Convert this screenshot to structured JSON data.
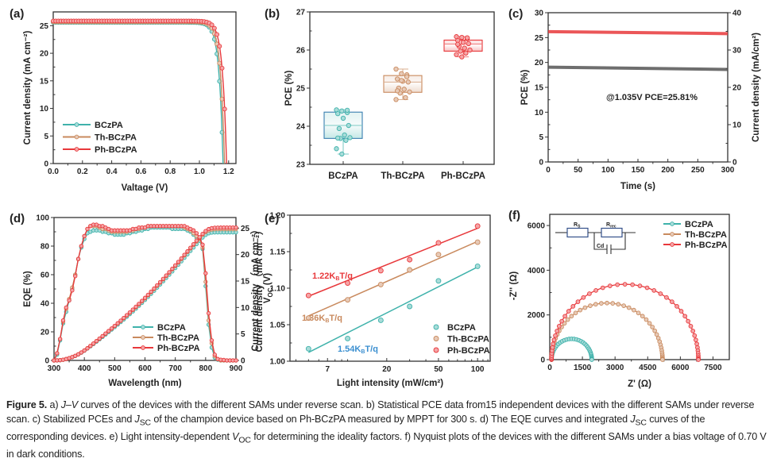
{
  "colors": {
    "BCzPA": "#3fb2ab",
    "Th-BCzPA": "#c98a5e",
    "Ph-BCzPA": "#e8383b",
    "fit_label_BCzPA": "#3b8fd0",
    "black_line": "#555555"
  },
  "chart_data": [
    {
      "id": "a",
      "panel_label": "(a)",
      "type": "line",
      "xlabel": "Valtage (V)",
      "ylabel": "Current density (mA cm⁻²)",
      "xlim": [
        0,
        1.25
      ],
      "ylim": [
        0,
        27.5
      ],
      "xticks": [
        "0.0",
        "0.2",
        "0.4",
        "0.6",
        "0.8",
        "1.0",
        "1.2"
      ],
      "xtick_values": [
        0,
        0.2,
        0.4,
        0.6,
        0.8,
        1.0,
        1.2
      ],
      "yticks": [
        "0",
        "5",
        "10",
        "15",
        "20",
        "25"
      ],
      "ytick_values": [
        0,
        5,
        10,
        15,
        20,
        25
      ],
      "legend": {
        "placement": "bottom-left",
        "entries": [
          "BCzPA",
          "Th-BCzPA",
          "Ph-BCzPA"
        ]
      },
      "series": [
        {
          "name": "BCzPA",
          "jsc": 25.6,
          "voc": 1.162,
          "knee": 0.93
        },
        {
          "name": "Th-BCzPA",
          "jsc": 25.7,
          "voc": 1.172,
          "knee": 0.97
        },
        {
          "name": "Ph-BCzPA",
          "jsc": 25.85,
          "voc": 1.186,
          "knee": 1.0
        }
      ]
    },
    {
      "id": "b",
      "panel_label": "(b)",
      "type": "box",
      "ylabel": "PCE (%)",
      "ylim": [
        23,
        27
      ],
      "yticks": [
        "23",
        "24",
        "25",
        "26",
        "27"
      ],
      "ytick_values": [
        23,
        24,
        25,
        26,
        27
      ],
      "categories": [
        "BCzPA",
        "Th-BCzPA",
        "Ph-BCzPA"
      ],
      "boxes": [
        {
          "name": "BCzPA",
          "q1": 23.68,
          "median": 24.02,
          "q3": 24.37,
          "min": 23.27,
          "max": 24.43,
          "points": [
            24.43,
            24.4,
            24.36,
            24.33,
            24.21,
            24.02,
            23.94,
            23.77,
            23.7,
            23.68,
            23.63,
            23.41,
            23.27,
            24.42,
            23.69
          ]
        },
        {
          "name": "Th-BCzPA",
          "q1": 24.89,
          "median": 25.16,
          "q3": 25.33,
          "min": 24.7,
          "max": 25.5,
          "points": [
            25.5,
            25.38,
            25.35,
            25.24,
            25.18,
            25.16,
            25.0,
            24.97,
            24.9,
            24.87,
            24.75,
            24.7,
            25.2,
            25.3,
            24.93
          ]
        },
        {
          "name": "Ph-BCzPA",
          "q1": 25.97,
          "median": 26.16,
          "q3": 26.26,
          "min": 25.82,
          "max": 26.35,
          "points": [
            26.35,
            26.33,
            26.3,
            26.25,
            26.2,
            26.17,
            26.1,
            26.05,
            26.0,
            25.97,
            25.92,
            25.88,
            25.82,
            26.32,
            26.15
          ]
        }
      ]
    },
    {
      "id": "c",
      "panel_label": "(c)",
      "type": "line",
      "xlabel": "Time (s)",
      "ylabel": "PCE (%)",
      "ylabel_right": "Current density (mA/cm²)",
      "xlim": [
        0,
        300
      ],
      "ylim": [
        0,
        30
      ],
      "ylim_right": [
        0,
        40
      ],
      "xticks": [
        "0",
        "50",
        "100",
        "150",
        "200",
        "250",
        "300"
      ],
      "xtick_values": [
        0,
        50,
        100,
        150,
        200,
        250,
        300
      ],
      "yticks": [
        "0",
        "5",
        "10",
        "15",
        "20",
        "25",
        "30"
      ],
      "ytick_values": [
        0,
        5,
        10,
        15,
        20,
        25,
        30
      ],
      "yticks_right": [
        "0",
        "10",
        "20",
        "30",
        "40"
      ],
      "ytick_values_right": [
        0,
        10,
        20,
        30,
        40
      ],
      "annotation": "@1.035V   PCE=25.81%",
      "series": [
        {
          "name": "PCE",
          "axis": "left",
          "color": "#e8383b",
          "x": [
            0,
            300
          ],
          "y": [
            26.2,
            25.8
          ]
        },
        {
          "name": "Current density",
          "axis": "right",
          "color": "#555555",
          "x": [
            0,
            300
          ],
          "y": [
            25.4,
            24.8
          ]
        }
      ]
    },
    {
      "id": "d",
      "panel_label": "(d)",
      "type": "line",
      "xlabel": "Wavelength (nm)",
      "ylabel": "EQE (%)",
      "ylabel_right": "Current density （mA cm⁻²）",
      "xlim": [
        300,
        900
      ],
      "ylim": [
        0,
        100
      ],
      "ylim_right": [
        0,
        27
      ],
      "xticks": [
        "300",
        "400",
        "500",
        "600",
        "700",
        "800",
        "900"
      ],
      "xtick_values": [
        300,
        400,
        500,
        600,
        700,
        800,
        900
      ],
      "yticks": [
        "0",
        "20",
        "40",
        "60",
        "80",
        "100"
      ],
      "ytick_values": [
        0,
        20,
        40,
        60,
        80,
        100
      ],
      "yticks_right": [
        "0",
        "5",
        "10",
        "15",
        "20",
        "25"
      ],
      "ytick_values_right": [
        0,
        5,
        10,
        15,
        20,
        25
      ],
      "legend": {
        "placement": "bottom-center",
        "entries": [
          "BCzPA",
          "Th-BCzPA",
          "Ph-BCzPA"
        ]
      },
      "eqe_wavelength": [
        300,
        310,
        320,
        330,
        340,
        350,
        360,
        370,
        380,
        390,
        400,
        410,
        420,
        430,
        440,
        450,
        460,
        470,
        480,
        490,
        500,
        510,
        520,
        530,
        540,
        550,
        560,
        570,
        580,
        590,
        600,
        610,
        620,
        630,
        640,
        650,
        660,
        670,
        680,
        690,
        700,
        710,
        720,
        730,
        740,
        750,
        760,
        770,
        780,
        790,
        800,
        810,
        820,
        830,
        840,
        850,
        860,
        870,
        880,
        890,
        900
      ],
      "series": [
        {
          "name": "BCzPA",
          "eqe": [
            0,
            4,
            14,
            26,
            34,
            42,
            50,
            60,
            71,
            79,
            85,
            89,
            90,
            91,
            91,
            91,
            90,
            90,
            89,
            89,
            88,
            88,
            88,
            88,
            89,
            89,
            90,
            90,
            91,
            91,
            92,
            92,
            93,
            93,
            93,
            93,
            93,
            93,
            93,
            92,
            92,
            92,
            92,
            92,
            91,
            90,
            88,
            86,
            84,
            78,
            52,
            25,
            9,
            2,
            0.5,
            0,
            0,
            0,
            0,
            0,
            0
          ],
          "jsc_final": 24.2
        },
        {
          "name": "Th-BCzPA",
          "eqe": [
            0,
            5,
            15,
            27,
            36,
            43,
            51,
            60,
            71,
            80,
            87,
            92,
            94,
            94,
            94,
            93,
            92,
            92,
            91,
            90,
            90,
            90,
            90,
            90,
            90,
            91,
            91,
            92,
            92,
            93,
            93,
            94,
            94,
            94,
            94,
            94,
            94,
            94,
            94,
            94,
            94,
            94,
            94,
            93,
            92,
            91,
            89,
            87,
            85,
            79,
            55,
            28,
            12,
            3,
            0.8,
            0,
            0,
            0,
            0,
            0,
            0
          ],
          "jsc_final": 24.8
        },
        {
          "name": "Ph-BCzPA",
          "eqe": [
            0,
            5,
            15,
            28,
            37,
            42,
            49,
            59,
            71,
            80,
            87,
            92,
            94,
            95,
            95,
            94,
            94,
            93,
            92,
            91,
            91,
            91,
            91,
            91,
            91,
            91,
            92,
            92,
            93,
            93,
            93,
            94,
            94,
            94,
            94,
            94,
            94,
            94,
            94,
            94,
            94,
            94,
            94,
            94,
            93,
            92,
            91,
            89,
            86,
            81,
            61,
            33,
            14,
            4,
            1,
            0.5,
            0.3,
            0,
            0,
            0,
            0
          ],
          "jsc_final": 25.1
        }
      ]
    },
    {
      "id": "e",
      "panel_label": "(e)",
      "type": "scatter",
      "xlabel": "Light intensity (mW/cm²)",
      "ylabel": "V_OC (V)",
      "ylabel_behind": "Current density （mA cm⁻²）",
      "xscale": "log",
      "xlim": [
        3.6,
        125
      ],
      "ylim": [
        1.0,
        1.2
      ],
      "xticks": [
        "7",
        "20",
        "50",
        "100"
      ],
      "xtick_values": [
        7,
        20,
        50,
        100
      ],
      "yticks": [
        "1.00",
        "1.05",
        "1.10",
        "1.15",
        "1.20"
      ],
      "ytick_values": [
        1.0,
        1.05,
        1.1,
        1.15,
        1.2
      ],
      "legend": {
        "placement": "bottom-right",
        "entries": [
          "BCzPA",
          "Th-BCzPA",
          "Ph-BCzPA"
        ]
      },
      "x": [
        5,
        10,
        18,
        30,
        50,
        100
      ],
      "series": [
        {
          "name": "BCzPA",
          "y": [
            1.017,
            1.031,
            1.056,
            1.075,
            1.11,
            1.13
          ],
          "fit": [
            1.012,
            1.129
          ],
          "fit_label": "1.54K_BT/q"
        },
        {
          "name": "Th-BCzPA",
          "y": [
            1.059,
            1.084,
            1.105,
            1.125,
            1.146,
            1.163
          ],
          "fit": [
            1.062,
            1.164
          ],
          "fit_label": "1.36K_BT/q"
        },
        {
          "name": "Ph-BCzPA",
          "y": [
            1.09,
            1.107,
            1.124,
            1.139,
            1.162,
            1.185
          ],
          "fit": [
            1.089,
            1.182
          ],
          "fit_label": "1.22K_BT/q"
        }
      ]
    },
    {
      "id": "f",
      "panel_label": "(f)",
      "type": "line",
      "xlabel": "Z' (Ω)",
      "ylabel": "-Z'' (Ω)",
      "xlim": [
        0,
        8250
      ],
      "ylim": [
        0,
        6500
      ],
      "xticks": [
        "0",
        "1500",
        "3000",
        "4500",
        "6000",
        "7500"
      ],
      "xtick_values": [
        0,
        1500,
        3000,
        4500,
        6000,
        7500
      ],
      "yticks": [
        "0",
        "2000",
        "4000",
        "6000"
      ],
      "ytick_values": [
        0,
        2000,
        4000,
        6000
      ],
      "legend": {
        "placement": "top-right",
        "entries": [
          "BCzPA",
          "Th-BCzPA",
          "Ph-BCzPA"
        ]
      },
      "circuit_labels": {
        "rs": "R",
        "rs_sub": "S",
        "rrec": "R",
        "rrec_sub": "rec",
        "cd": "Cd"
      },
      "series": [
        {
          "name": "BCzPA",
          "rs": 80,
          "rrec": 1850,
          "peak": 930
        },
        {
          "name": "Th-BCzPA",
          "rs": 80,
          "rrec": 5100,
          "peak": 2530
        },
        {
          "name": "Ph-BCzPA",
          "rs": 80,
          "rrec": 6750,
          "peak": 3370
        }
      ]
    }
  ],
  "caption": {
    "label": "Figure 5.",
    "text_a": " a) ",
    "jv": "J–V",
    "text_1": " curves of the devices with the different SAMs under reverse scan. b) Statistical PCE data from15 independent devices with the different SAMs under reverse scan. c) Stabilized PCEs and ",
    "jsc_j": "J",
    "jsc_sub": "SC",
    "text_2": " of the champion device based on Ph-BCzPA measured by MPPT for 300 s. d) The EQE curves and integrated ",
    "text_3": " curves of the corresponding devices. e) Light intensity-dependent ",
    "voc_v": "V",
    "voc_sub": "OC",
    "text_4": " for determining the ideality factors. f) Nyquist plots of the devices with the different SAMs under a bias voltage of 0.70 V in dark conditions."
  }
}
